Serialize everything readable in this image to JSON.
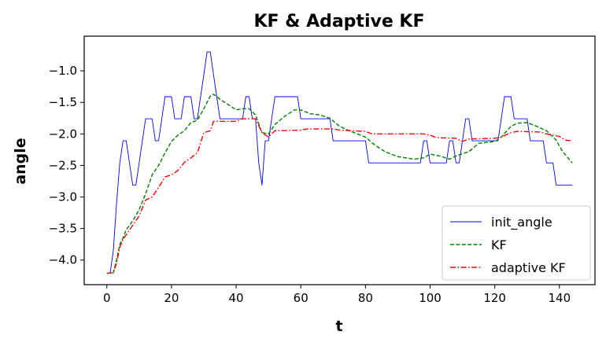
{
  "chart_data": {
    "type": "line",
    "title": "KF & Adaptive KF",
    "xlabel": "t",
    "ylabel": "angle",
    "xlim": [
      -7,
      151
    ],
    "ylim": [
      -4.39,
      -0.45
    ],
    "xticks": [
      0,
      20,
      40,
      60,
      80,
      100,
      120,
      140
    ],
    "xtick_labels": [
      "0",
      "20",
      "40",
      "60",
      "80",
      "100",
      "120",
      "140"
    ],
    "yticks": [
      -1.0,
      -1.5,
      -2.0,
      -2.5,
      -3.0,
      -3.5,
      -4.0
    ],
    "ytick_labels": [
      "−1.0",
      "−1.5",
      "−2.0",
      "−2.5",
      "−3.0",
      "−3.5",
      "−4.0"
    ],
    "grid": false,
    "legend_position": "lower-right",
    "series": [
      {
        "name": "init_angle",
        "color": "#0000ff",
        "style": "solid",
        "points": [
          [
            0,
            -4.21
          ],
          [
            1,
            -4.21
          ],
          [
            2,
            -3.85
          ],
          [
            3,
            -3.1
          ],
          [
            4,
            -2.46
          ],
          [
            5,
            -2.11
          ],
          [
            6,
            -2.11
          ],
          [
            7,
            -2.46
          ],
          [
            8,
            -2.81
          ],
          [
            9,
            -2.81
          ],
          [
            10,
            -2.46
          ],
          [
            11,
            -2.11
          ],
          [
            12,
            -1.76
          ],
          [
            14,
            -1.76
          ],
          [
            15,
            -2.11
          ],
          [
            16,
            -2.11
          ],
          [
            17,
            -1.76
          ],
          [
            18,
            -1.41
          ],
          [
            20,
            -1.41
          ],
          [
            21,
            -1.76
          ],
          [
            23,
            -1.76
          ],
          [
            24,
            -1.41
          ],
          [
            26,
            -1.41
          ],
          [
            27,
            -1.76
          ],
          [
            28,
            -1.76
          ],
          [
            30,
            -1.06
          ],
          [
            31,
            -0.7
          ],
          [
            32,
            -0.7
          ],
          [
            33,
            -1.06
          ],
          [
            34,
            -1.41
          ],
          [
            35,
            -1.76
          ],
          [
            42,
            -1.76
          ],
          [
            43,
            -1.41
          ],
          [
            44,
            -1.41
          ],
          [
            45,
            -1.76
          ],
          [
            46,
            -1.76
          ],
          [
            47,
            -2.46
          ],
          [
            48,
            -2.81
          ],
          [
            49,
            -2.11
          ],
          [
            50,
            -2.11
          ],
          [
            51,
            -1.76
          ],
          [
            52,
            -1.41
          ],
          [
            59,
            -1.41
          ],
          [
            60,
            -1.76
          ],
          [
            69,
            -1.76
          ],
          [
            70,
            -2.11
          ],
          [
            80,
            -2.11
          ],
          [
            81,
            -2.46
          ],
          [
            97,
            -2.46
          ],
          [
            98,
            -2.11
          ],
          [
            99,
            -2.11
          ],
          [
            100,
            -2.46
          ],
          [
            105,
            -2.46
          ],
          [
            106,
            -2.11
          ],
          [
            107,
            -2.11
          ],
          [
            108,
            -2.46
          ],
          [
            109,
            -2.46
          ],
          [
            110,
            -2.11
          ],
          [
            111,
            -1.76
          ],
          [
            112,
            -1.76
          ],
          [
            113,
            -2.11
          ],
          [
            121,
            -2.11
          ],
          [
            122,
            -1.76
          ],
          [
            123,
            -1.41
          ],
          [
            125,
            -1.41
          ],
          [
            126,
            -1.76
          ],
          [
            130,
            -1.76
          ],
          [
            131,
            -2.11
          ],
          [
            135,
            -2.11
          ],
          [
            136,
            -2.46
          ],
          [
            138,
            -2.46
          ],
          [
            139,
            -2.81
          ],
          [
            144,
            -2.81
          ]
        ]
      },
      {
        "name": "KF",
        "color": "#008000",
        "style": "dashed",
        "points": [
          [
            0,
            -4.21
          ],
          [
            2,
            -4.2
          ],
          [
            3,
            -4.0
          ],
          [
            4,
            -3.75
          ],
          [
            5,
            -3.65
          ],
          [
            6,
            -3.52
          ],
          [
            8,
            -3.38
          ],
          [
            10,
            -3.2
          ],
          [
            12,
            -2.95
          ],
          [
            14,
            -2.65
          ],
          [
            16,
            -2.5
          ],
          [
            18,
            -2.3
          ],
          [
            20,
            -2.12
          ],
          [
            22,
            -2.02
          ],
          [
            24,
            -1.95
          ],
          [
            26,
            -1.82
          ],
          [
            28,
            -1.78
          ],
          [
            30,
            -1.6
          ],
          [
            32,
            -1.4
          ],
          [
            33,
            -1.37
          ],
          [
            35,
            -1.45
          ],
          [
            38,
            -1.55
          ],
          [
            40,
            -1.62
          ],
          [
            42,
            -1.6
          ],
          [
            44,
            -1.6
          ],
          [
            46,
            -1.7
          ],
          [
            48,
            -1.98
          ],
          [
            50,
            -2.0
          ],
          [
            52,
            -1.85
          ],
          [
            55,
            -1.72
          ],
          [
            58,
            -1.62
          ],
          [
            60,
            -1.62
          ],
          [
            63,
            -1.68
          ],
          [
            66,
            -1.7
          ],
          [
            69,
            -1.75
          ],
          [
            72,
            -1.88
          ],
          [
            75,
            -1.95
          ],
          [
            80,
            -2.05
          ],
          [
            83,
            -2.18
          ],
          [
            86,
            -2.28
          ],
          [
            90,
            -2.36
          ],
          [
            95,
            -2.4
          ],
          [
            98,
            -2.38
          ],
          [
            100,
            -2.32
          ],
          [
            103,
            -2.35
          ],
          [
            106,
            -2.4
          ],
          [
            108,
            -2.35
          ],
          [
            112,
            -2.28
          ],
          [
            115,
            -2.15
          ],
          [
            120,
            -2.12
          ],
          [
            122,
            -2.05
          ],
          [
            125,
            -1.88
          ],
          [
            127,
            -1.83
          ],
          [
            130,
            -1.82
          ],
          [
            133,
            -1.88
          ],
          [
            136,
            -1.95
          ],
          [
            139,
            -2.1
          ],
          [
            141,
            -2.28
          ],
          [
            144,
            -2.46
          ]
        ]
      },
      {
        "name": "adaptive KF",
        "color": "#ff0000",
        "style": "dashdot",
        "points": [
          [
            0,
            -4.21
          ],
          [
            2,
            -4.2
          ],
          [
            3,
            -4.05
          ],
          [
            4,
            -3.8
          ],
          [
            5,
            -3.67
          ],
          [
            6,
            -3.6
          ],
          [
            8,
            -3.45
          ],
          [
            10,
            -3.3
          ],
          [
            12,
            -3.05
          ],
          [
            14,
            -3.0
          ],
          [
            16,
            -2.85
          ],
          [
            18,
            -2.68
          ],
          [
            20,
            -2.65
          ],
          [
            22,
            -2.58
          ],
          [
            24,
            -2.45
          ],
          [
            26,
            -2.38
          ],
          [
            28,
            -2.3
          ],
          [
            30,
            -1.98
          ],
          [
            32,
            -1.95
          ],
          [
            33,
            -1.8
          ],
          [
            40,
            -1.8
          ],
          [
            42,
            -1.76
          ],
          [
            46,
            -1.76
          ],
          [
            48,
            -1.98
          ],
          [
            50,
            -2.05
          ],
          [
            52,
            -1.95
          ],
          [
            60,
            -1.94
          ],
          [
            62,
            -1.92
          ],
          [
            70,
            -1.92
          ],
          [
            72,
            -1.94
          ],
          [
            80,
            -1.96
          ],
          [
            82,
            -2.0
          ],
          [
            98,
            -2.0
          ],
          [
            100,
            -2.02
          ],
          [
            102,
            -2.06
          ],
          [
            108,
            -2.07
          ],
          [
            110,
            -2.12
          ],
          [
            112,
            -2.08
          ],
          [
            120,
            -2.07
          ],
          [
            122,
            -2.05
          ],
          [
            125,
            -1.98
          ],
          [
            127,
            -1.96
          ],
          [
            134,
            -1.97
          ],
          [
            136,
            -2.0
          ],
          [
            140,
            -2.04
          ],
          [
            142,
            -2.1
          ],
          [
            144,
            -2.11
          ]
        ]
      }
    ]
  }
}
